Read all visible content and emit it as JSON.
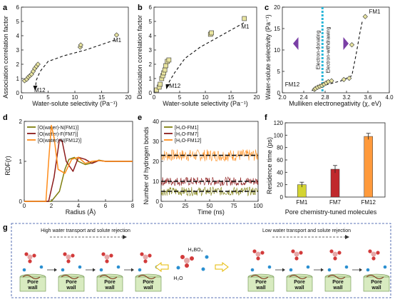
{
  "panels": {
    "a": {
      "label": "a",
      "chart_data": {
        "type": "scatter",
        "xlabel": "Water-solute selectivity (Pa⁻¹)",
        "ylabel": "Association correlation factor",
        "xlim": [
          0,
          20
        ],
        "ylim": [
          0,
          6
        ],
        "xticks": [
          0,
          5,
          10,
          15,
          20
        ],
        "yticks": [
          0,
          1,
          2,
          3,
          4,
          5,
          6
        ],
        "x": [
          0.6,
          1.0,
          1.3,
          1.6,
          1.9,
          2.2,
          2.5,
          2.8,
          3.1,
          11.0,
          11.1,
          17.8
        ],
        "y": [
          0.85,
          0.95,
          1.1,
          1.2,
          1.3,
          1.5,
          1.7,
          1.85,
          2.0,
          3.2,
          3.35,
          4.05
        ],
        "annotations": [
          "M1",
          "M12"
        ],
        "marker_color": "#e8e4a0"
      }
    },
    "b": {
      "label": "b",
      "chart_data": {
        "type": "scatter",
        "xlabel": "Water-solute selectivity (Pa⁻¹)",
        "ylabel": "Dissociation correlation factor",
        "xlim": [
          0,
          20
        ],
        "ylim": [
          0,
          6
        ],
        "xticks": [
          0,
          5,
          10,
          15,
          20
        ],
        "yticks": [
          0,
          1,
          2,
          3,
          4,
          5,
          6
        ],
        "x": [
          0.5,
          1.0,
          1.2,
          1.5,
          1.7,
          1.9,
          2.1,
          2.3,
          2.6,
          2.9,
          11.0,
          11.2,
          17.6
        ],
        "y": [
          0.2,
          0.4,
          0.6,
          1.0,
          1.2,
          1.4,
          1.6,
          1.9,
          2.2,
          2.3,
          4.1,
          4.2,
          5.2
        ],
        "annotations": [
          "M1",
          "M12"
        ],
        "marker_color": "#e8e4a0"
      }
    },
    "c": {
      "label": "c",
      "chart_data": {
        "type": "scatter",
        "xlabel": "Mulliken electronegativity (χ, eV)",
        "ylabel": "Water-solute selectivity (Pa⁻¹)",
        "xlim": [
          2.0,
          4.0
        ],
        "ylim": [
          0,
          20
        ],
        "xticks": [
          2.0,
          2.4,
          2.8,
          3.2,
          3.6,
          4.0
        ],
        "xtick_labels": [
          "2.0",
          "2.4",
          "2.8",
          "3.2",
          "3.6",
          "4.0"
        ],
        "yticks": [
          0,
          5,
          10,
          15,
          20
        ],
        "x": [
          2.6,
          2.62,
          2.66,
          2.7,
          2.74,
          2.78,
          2.82,
          2.86,
          2.92,
          3.15,
          3.25,
          3.3,
          3.55
        ],
        "y": [
          0.8,
          1.0,
          1.3,
          1.5,
          1.7,
          2.0,
          2.3,
          2.6,
          2.8,
          3.1,
          3.4,
          11.2,
          17.8
        ],
        "annotations": [
          "FM1",
          "FM12"
        ],
        "divider_x": 2.75,
        "left_region_label": "Electron-donating",
        "right_region_label": "Electron-withdrawing",
        "marker_color": "#e8e4a0",
        "divider_color": "#29b6d8",
        "arrow_color": "#7a3fa6"
      }
    },
    "d": {
      "label": "d",
      "chart_data": {
        "type": "line",
        "xlabel": "Radius (Å)",
        "ylabel": "RDF(r)",
        "xlim": [
          0,
          8
        ],
        "ylim": [
          0,
          2.0
        ],
        "xticks": [
          0,
          2,
          4,
          6,
          8
        ],
        "yticks": [
          0,
          1,
          2
        ],
        "series": [
          {
            "name": "[O(water)-N(FM1)]",
            "color": "#7f7f0f",
            "x": [
              0,
              2.0,
              2.6,
              3.0,
              3.3,
              3.7,
              4.0,
              4.5,
              5.0,
              5.5,
              6.0,
              7.0,
              8.0
            ],
            "y": [
              0,
              0,
              0.25,
              0.8,
              1.05,
              1.1,
              1.0,
              0.92,
              0.96,
              1.03,
              1.0,
              1.0,
              1.0
            ]
          },
          {
            "name": "[O(water)-F(FM7)]",
            "color": "#8b1a1a",
            "x": [
              0,
              1.8,
              2.2,
              2.6,
              2.8,
              3.1,
              3.6,
              4.0,
              4.5,
              5.0,
              5.5,
              6.0,
              7.0,
              8.0
            ],
            "y": [
              0,
              0,
              0.6,
              1.55,
              1.5,
              1.0,
              0.75,
              1.1,
              1.05,
              0.95,
              1.02,
              1.0,
              1.0,
              1.0
            ]
          },
          {
            "name": "[O(water)-N(FM12)]",
            "color": "#ff8c1a",
            "x": [
              0,
              1.6,
              1.8,
              2.0,
              2.2,
              2.5,
              3.0,
              3.5,
              4.0,
              4.5,
              5.0,
              5.5,
              6.0,
              7.0,
              8.0
            ],
            "y": [
              0,
              0,
              1.0,
              1.9,
              1.6,
              0.8,
              0.7,
              1.05,
              1.1,
              0.95,
              1.0,
              1.02,
              1.0,
              1.0,
              1.0
            ]
          }
        ]
      }
    },
    "e": {
      "label": "e",
      "chart_data": {
        "type": "line",
        "xlabel": "Time (ns)",
        "ylabel": "Number of hydrogen bonds",
        "xlim": [
          0,
          100
        ],
        "ylim": [
          0,
          40
        ],
        "xticks": [
          0,
          25,
          50,
          75,
          100
        ],
        "yticks": [
          0,
          10,
          20,
          30,
          40
        ],
        "series": [
          {
            "name": "[H₂O-FM1]",
            "color": "#7f7f0f",
            "mean": 5
          },
          {
            "name": "[H₂O-FM7]",
            "color": "#8b1a1a",
            "mean": 10
          },
          {
            "name": "[H₂O-FM12]",
            "color": "#ff8c1a",
            "mean": 23
          }
        ]
      }
    },
    "f": {
      "label": "f",
      "chart_data": {
        "type": "bar",
        "xlabel": "Pore chemistry-tuned molecules",
        "ylabel": "Residence time (ps)",
        "categories": [
          "FM1",
          "FM7",
          "FM12"
        ],
        "values": [
          20,
          45,
          98
        ],
        "errors": [
          4,
          6,
          5
        ],
        "colors": [
          "#d4d432",
          "#c0282c",
          "#ff9a3c"
        ],
        "ylim": [
          0,
          120
        ],
        "yticks": [
          0,
          20,
          40,
          60,
          80,
          100,
          120
        ]
      }
    },
    "g": {
      "label": "g",
      "left_caption": "High water transport and solute rejection",
      "right_caption": "Low water transport and solute rejection",
      "center_h3bo3": "H₃BO₃",
      "center_h2o": "H₂O",
      "wall_top": "Pore",
      "wall_bottom": "wall"
    }
  }
}
